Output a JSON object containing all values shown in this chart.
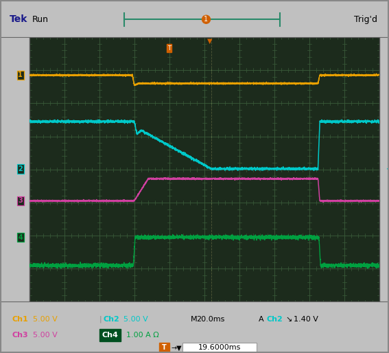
{
  "screen_bg": "#1c2b1c",
  "grid_color": "#3a5c3a",
  "outer_bg": "#c0c0c0",
  "ch1_color": "#e8a000",
  "ch2_color": "#00c8c8",
  "ch3_color": "#d040a0",
  "ch4_color": "#00a040",
  "tek_color": "#1a1a8a",
  "n_hdiv": 10,
  "n_vdiv": 8,
  "xmin": 0.0,
  "xmax": 1.0,
  "ymin": 0.0,
  "ymax": 8.0,
  "ch1_scale": "5.00 V",
  "ch2_scale": "5.00 V",
  "ch3_scale": "5.00 V",
  "ch4_scale": "1.00 A Ω",
  "time_scale": "M20.0ms",
  "trig_level": "1.40 V",
  "cursor_time": "19.6000ms"
}
